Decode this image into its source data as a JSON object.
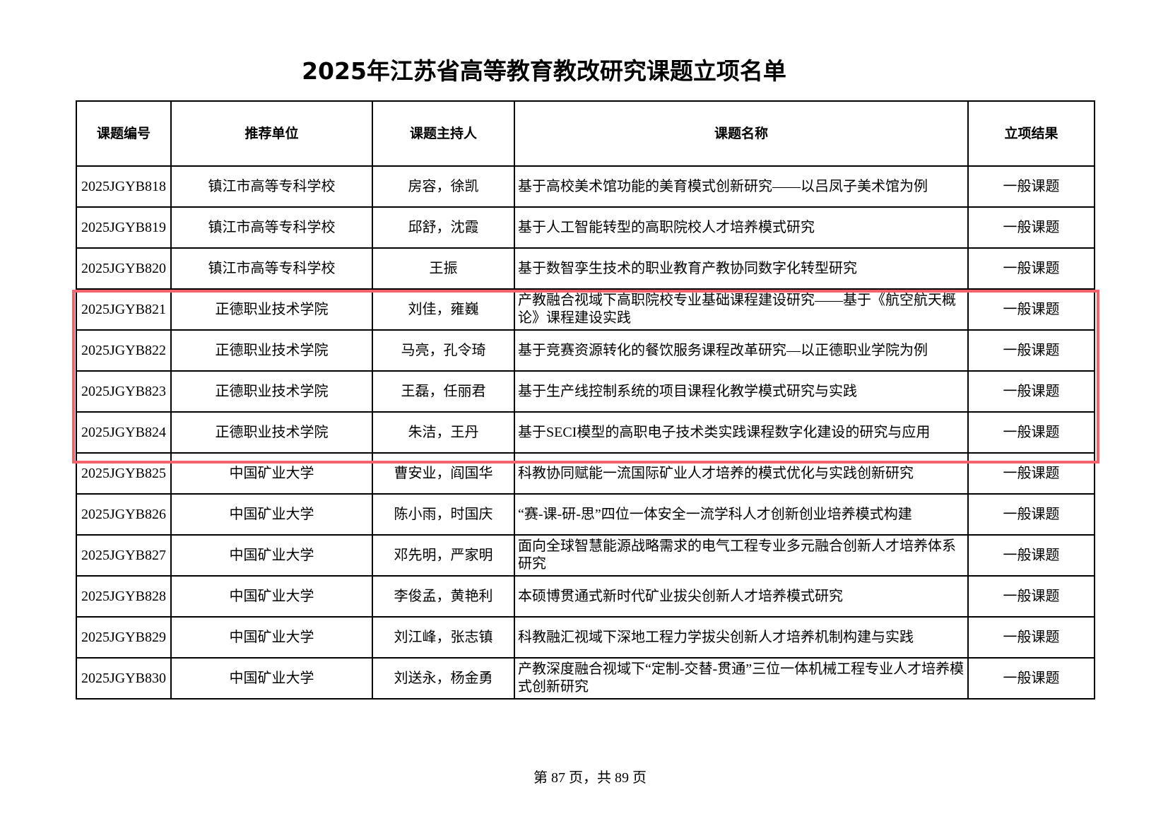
{
  "title": "2025年江苏省高等教育教改研究课题立项名单",
  "columns": [
    "课题编号",
    "推荐单位",
    "课题主持人",
    "课题名称",
    "立项结果"
  ],
  "rows": [
    [
      "2025JGYB818",
      "镇江市高等专科学校",
      "房容，徐凯",
      "基于高校美术馆功能的美育模式创新研究——以吕凤子美术馆为例",
      "一般课题"
    ],
    [
      "2025JGYB819",
      "镇江市高等专科学校",
      "邱舒，沈霞",
      "基于人工智能转型的高职院校人才培养模式研究",
      "一般课题"
    ],
    [
      "2025JGYB820",
      "镇江市高等专科学校",
      "王振",
      "基于数智孪生技术的职业教育产教协同数字化转型研究",
      "一般课题"
    ],
    [
      "2025JGYB821",
      "正德职业技术学院",
      "刘佳，雍巍",
      "产教融合视域下高职院校专业基础课程建设研究——基于《航空航天概论》课程建设实践",
      "一般课题"
    ],
    [
      "2025JGYB822",
      "正德职业技术学院",
      "马亮，孔令琦",
      "基于竞赛资源转化的餐饮服务课程改革研究—以正德职业学院为例",
      "一般课题"
    ],
    [
      "2025JGYB823",
      "正德职业技术学院",
      "王磊，任丽君",
      "基于生产线控制系统的项目课程化教学模式研究与实践",
      "一般课题"
    ],
    [
      "2025JGYB824",
      "正德职业技术学院",
      "朱洁，王丹",
      "基于SECI模型的高职电子技术类实践课程数字化建设的研究与应用",
      "一般课题"
    ],
    [
      "2025JGYB825",
      "中国矿业大学",
      "曹安业，阎国华",
      "科教协同赋能一流国际矿业人才培养的模式优化与实践创新研究",
      "一般课题"
    ],
    [
      "2025JGYB826",
      "中国矿业大学",
      "陈小雨，时国庆",
      "“赛-课-研-思”四位一体安全一流学科人才创新创业培养模式构建",
      "一般课题"
    ],
    [
      "2025JGYB827",
      "中国矿业大学",
      "邓先明，严家明",
      "面向全球智慧能源战略需求的电气工程专业多元融合创新人才培养体系研究",
      "一般课题"
    ],
    [
      "2025JGYB828",
      "中国矿业大学",
      "李俊孟，黄艳利",
      "本硕博贯通式新时代矿业拔尖创新人才培养模式研究",
      "一般课题"
    ],
    [
      "2025JGYB829",
      "中国矿业大学",
      "刘江峰，张志镇",
      "科教融汇视域下深地工程力学拔尖创新人才培养机制构建与实践",
      "一般课题"
    ],
    [
      "2025JGYB830",
      "中国矿业大学",
      "刘送永，杨金勇",
      "产教深度融合视域下“定制-交替-贯通”三位一体机械工程专业人才培养模式创新研究",
      "一般课题"
    ]
  ],
  "highlight_color": "#f4646c",
  "footer": "第 87 页，共 89 页"
}
